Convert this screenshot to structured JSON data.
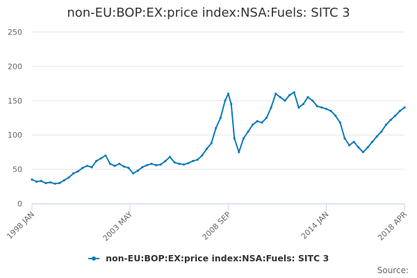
{
  "colors": {
    "series": "#0d7ab8",
    "grid": "#e6e6e6",
    "axis": "#ccd6eb",
    "text": "#666666"
  },
  "source_label": "Source:",
  "chart_data": {
    "type": "line",
    "title": "non-EU:BOP:EX:price index:NSA:Fuels: SITC 3",
    "xlabel": "",
    "ylabel": "",
    "ylim": [
      0,
      250
    ],
    "yticks": [
      0,
      50,
      100,
      150,
      200,
      250
    ],
    "xlim": [
      1998.0,
      2018.25
    ],
    "xticks": [
      {
        "label": "1998 JAN",
        "x": 1998.0
      },
      {
        "label": "2003 MAY",
        "x": 2003.33
      },
      {
        "label": "2008 SEP",
        "x": 2008.67
      },
      {
        "label": "2014 JAN",
        "x": 2014.0
      },
      {
        "label": "2018 APR",
        "x": 2018.25
      }
    ],
    "legend": "bottom-center",
    "grid": true,
    "series": [
      {
        "name": "non-EU:BOP:EX:price index:NSA:Fuels: SITC 3",
        "points": [
          [
            1998.0,
            35
          ],
          [
            1998.25,
            32
          ],
          [
            1998.5,
            33
          ],
          [
            1998.75,
            30
          ],
          [
            1999.0,
            31
          ],
          [
            1999.25,
            29
          ],
          [
            1999.5,
            30
          ],
          [
            1999.75,
            34
          ],
          [
            2000.0,
            38
          ],
          [
            2000.25,
            44
          ],
          [
            2000.5,
            47
          ],
          [
            2000.75,
            52
          ],
          [
            2001.0,
            55
          ],
          [
            2001.25,
            53
          ],
          [
            2001.5,
            62
          ],
          [
            2001.75,
            66
          ],
          [
            2002.0,
            70
          ],
          [
            2002.25,
            58
          ],
          [
            2002.5,
            55
          ],
          [
            2002.75,
            58
          ],
          [
            2003.0,
            54
          ],
          [
            2003.25,
            52
          ],
          [
            2003.5,
            44
          ],
          [
            2003.75,
            48
          ],
          [
            2004.0,
            53
          ],
          [
            2004.25,
            56
          ],
          [
            2004.5,
            58
          ],
          [
            2004.75,
            56
          ],
          [
            2005.0,
            57
          ],
          [
            2005.25,
            62
          ],
          [
            2005.5,
            68
          ],
          [
            2005.75,
            60
          ],
          [
            2006.0,
            58
          ],
          [
            2006.25,
            57
          ],
          [
            2006.5,
            59
          ],
          [
            2006.75,
            62
          ],
          [
            2007.0,
            64
          ],
          [
            2007.25,
            70
          ],
          [
            2007.5,
            80
          ],
          [
            2007.75,
            88
          ],
          [
            2008.0,
            110
          ],
          [
            2008.25,
            125
          ],
          [
            2008.5,
            150
          ],
          [
            2008.67,
            160
          ],
          [
            2008.83,
            145
          ],
          [
            2009.0,
            95
          ],
          [
            2009.25,
            75
          ],
          [
            2009.5,
            95
          ],
          [
            2009.75,
            105
          ],
          [
            2010.0,
            115
          ],
          [
            2010.25,
            120
          ],
          [
            2010.5,
            118
          ],
          [
            2010.75,
            125
          ],
          [
            2011.0,
            140
          ],
          [
            2011.25,
            160
          ],
          [
            2011.5,
            155
          ],
          [
            2011.75,
            150
          ],
          [
            2012.0,
            158
          ],
          [
            2012.25,
            162
          ],
          [
            2012.5,
            140
          ],
          [
            2012.75,
            145
          ],
          [
            2013.0,
            155
          ],
          [
            2013.25,
            150
          ],
          [
            2013.5,
            142
          ],
          [
            2013.75,
            140
          ],
          [
            2014.0,
            138
          ],
          [
            2014.25,
            135
          ],
          [
            2014.5,
            128
          ],
          [
            2014.75,
            118
          ],
          [
            2015.0,
            95
          ],
          [
            2015.25,
            85
          ],
          [
            2015.5,
            90
          ],
          [
            2015.75,
            82
          ],
          [
            2016.0,
            75
          ],
          [
            2016.25,
            82
          ],
          [
            2016.5,
            90
          ],
          [
            2016.75,
            98
          ],
          [
            2017.0,
            105
          ],
          [
            2017.25,
            115
          ],
          [
            2017.5,
            122
          ],
          [
            2017.75,
            128
          ],
          [
            2018.0,
            135
          ],
          [
            2018.25,
            140
          ]
        ]
      }
    ]
  }
}
